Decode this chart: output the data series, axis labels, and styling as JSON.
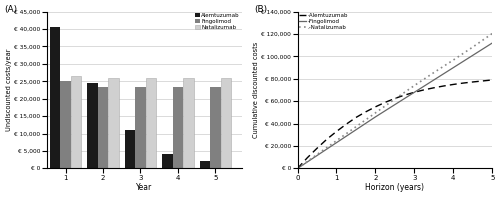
{
  "bar_years": [
    1,
    2,
    3,
    4,
    5
  ],
  "alem_bar": [
    40500,
    24500,
    11000,
    4000,
    2000
  ],
  "fingo_bar": [
    25000,
    23500,
    23500,
    23500,
    23500
  ],
  "natal_bar": [
    26500,
    26000,
    26000,
    26000,
    26000
  ],
  "bar_colors": {
    "Alemtuzumab": "#1a1a1a",
    "Fingolimod": "#808080",
    "Natalizumab": "#d0d0d0"
  },
  "bar_ylim": [
    0,
    45000
  ],
  "bar_yticks": [
    0,
    5000,
    10000,
    15000,
    20000,
    25000,
    30000,
    35000,
    40000,
    45000
  ],
  "bar_ylabel": "Undiscounted costs/year",
  "bar_xlabel": "Year",
  "bar_title": "(A)",
  "line_x": [
    0,
    0.25,
    0.5,
    0.75,
    1.0,
    1.25,
    1.5,
    1.75,
    2.0,
    2.25,
    2.5,
    2.75,
    3.0,
    3.25,
    3.5,
    3.75,
    4.0,
    4.25,
    4.5,
    4.75,
    5.0
  ],
  "alem_line": [
    0,
    9500,
    18000,
    26000,
    33000,
    39500,
    45500,
    50500,
    55000,
    59000,
    62500,
    65500,
    68000,
    70200,
    72000,
    73600,
    75000,
    76200,
    77200,
    78100,
    79000
  ],
  "fingo_line": [
    0,
    5750,
    11500,
    17250,
    23000,
    28750,
    34500,
    40250,
    46000,
    51500,
    57000,
    62500,
    68000,
    73500,
    79000,
    84500,
    90000,
    95500,
    101000,
    106500,
    112000
  ],
  "natal_line": [
    0,
    6200,
    12400,
    18600,
    24800,
    31000,
    37200,
    43400,
    49600,
    55800,
    62000,
    68000,
    74000,
    79800,
    85600,
    91200,
    96800,
    102600,
    108400,
    114400,
    120500
  ],
  "line_ylim": [
    0,
    140000
  ],
  "line_yticks": [
    0,
    20000,
    40000,
    60000,
    80000,
    100000,
    120000,
    140000
  ],
  "line_ylabel": "Cumulative discounted costs",
  "line_xlabel": "Horizon (years)",
  "line_title": "(B)",
  "line_xlim": [
    0,
    5
  ],
  "line_xticks": [
    0,
    1,
    2,
    3,
    4,
    5
  ],
  "legend_A_labels": [
    "Alemtuzumab",
    "Fingolimod",
    "Natalizumab"
  ],
  "legend_B_labels": [
    "-Alemtuzumab",
    "-Fingolimod",
    ".-Natalizumab"
  ]
}
